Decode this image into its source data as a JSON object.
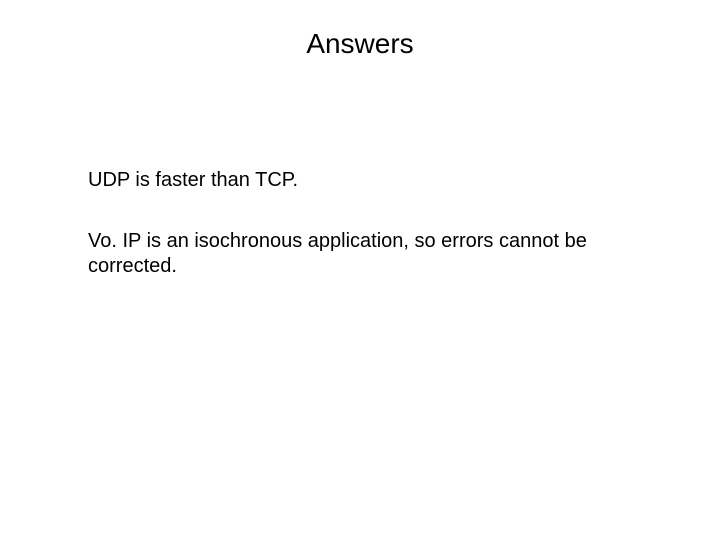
{
  "slide": {
    "title": "Answers",
    "paragraphs": [
      "UDP is faster than TCP.",
      "Vo. IP is an isochronous application, so errors cannot be corrected."
    ],
    "background_color": "#ffffff",
    "text_color": "#000000",
    "title_fontsize": 28,
    "body_fontsize": 20,
    "font_family": "Arial"
  }
}
